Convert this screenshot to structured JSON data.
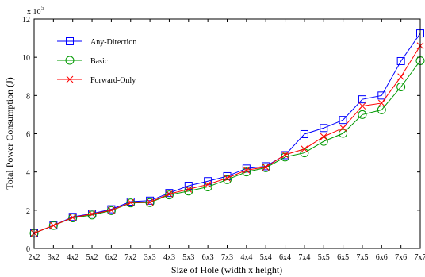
{
  "chart_data": {
    "type": "line",
    "title": "",
    "xlabel": "Size of Hole (width x height)",
    "ylabel": "Total Power Consumption (J)",
    "y_multiplier": "x 10",
    "y_multiplier_exponent": "5",
    "ylim": [
      0,
      12
    ],
    "yticks": [
      0,
      2,
      4,
      6,
      8,
      10,
      12
    ],
    "grid": false,
    "legend_position": "top-left",
    "categories": [
      "2x2",
      "3x2",
      "4x2",
      "5x2",
      "6x2",
      "7x2",
      "3x3",
      "4x3",
      "5x3",
      "6x3",
      "7x3",
      "4x4",
      "5x4",
      "6x4",
      "7x4",
      "5x5",
      "6x5",
      "7x5",
      "6x6",
      "7x6",
      "7x7"
    ],
    "series": [
      {
        "name": "Any-Direction",
        "color": "#0000ff",
        "marker": "square",
        "values": [
          0.8,
          1.2,
          1.65,
          1.82,
          2.05,
          2.45,
          2.5,
          2.9,
          3.28,
          3.52,
          3.78,
          4.18,
          4.3,
          4.88,
          5.98,
          6.3,
          6.72,
          7.8,
          8.0,
          9.8,
          11.25
        ]
      },
      {
        "name": "Basic",
        "color": "#009900",
        "marker": "circle",
        "values": [
          0.8,
          1.2,
          1.6,
          1.75,
          1.98,
          2.38,
          2.4,
          2.8,
          3.0,
          3.22,
          3.6,
          4.0,
          4.22,
          4.78,
          5.0,
          5.6,
          6.02,
          7.0,
          7.25,
          8.45,
          9.82
        ]
      },
      {
        "name": "Forward-Only",
        "color": "#ff0000",
        "marker": "x",
        "values": [
          0.8,
          1.2,
          1.62,
          1.8,
          2.0,
          2.4,
          2.42,
          2.85,
          3.1,
          3.35,
          3.68,
          4.1,
          4.25,
          4.9,
          5.2,
          5.85,
          6.3,
          7.45,
          7.6,
          8.98,
          10.6
        ]
      }
    ]
  }
}
